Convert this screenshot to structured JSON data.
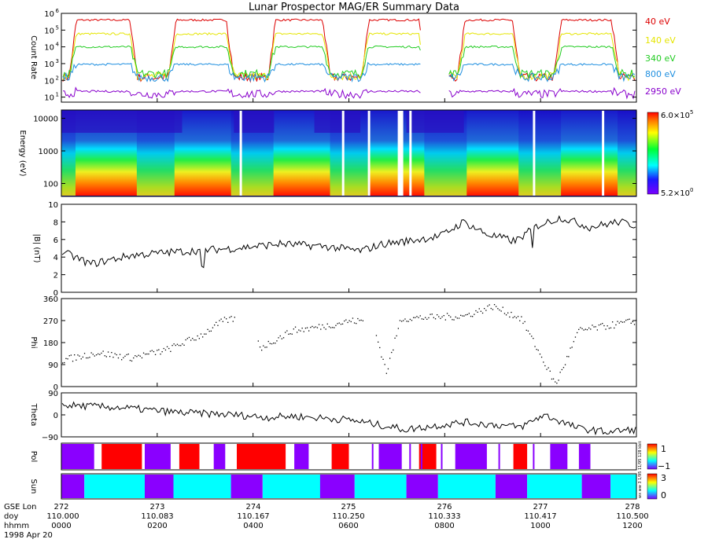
{
  "title": "Lunar Prospector MAG/ER Summary Data",
  "colors": {
    "e40": "#dd0000",
    "e140": "#e5e500",
    "e340": "#22cc22",
    "e800": "#1f8fe0",
    "e2950": "#8800cc",
    "pol_red": "#ff0000",
    "pol_purple": "#8a00ff",
    "sun_cyan": "#00ffff",
    "sun_purple": "#8a00ff",
    "trace": "#000000"
  },
  "chart_data": [
    {
      "id": "count-rate",
      "type": "line",
      "ylabel": "Count Rate",
      "yscale": "log",
      "ylim": [
        5,
        1000000
      ],
      "yticks": [
        {
          "label": "10",
          "exp": "1",
          "value": 10
        },
        {
          "label": "10",
          "exp": "2",
          "value": 100
        },
        {
          "label": "10",
          "exp": "3",
          "value": 1000
        },
        {
          "label": "10",
          "exp": "4",
          "value": 10000
        },
        {
          "label": "10",
          "exp": "5",
          "value": 100000
        },
        {
          "label": "10",
          "exp": "6",
          "value": 1000000
        }
      ],
      "series": [
        {
          "name": "40 eV",
          "high": 400000,
          "low": 150
        },
        {
          "name": "140 eV",
          "high": 60000,
          "low": 180
        },
        {
          "name": "340 eV",
          "high": 10000,
          "low": 250
        },
        {
          "name": "800 eV",
          "high": 900,
          "low": 150
        },
        {
          "name": "2950 eV",
          "high": 22,
          "low": 15
        }
      ]
    },
    {
      "id": "spectrogram",
      "type": "heatmap",
      "ylabel": "Energy (eV)",
      "ylim": [
        40,
        18000
      ],
      "yticks": [
        {
          "label": "10000",
          "value": 10000
        },
        {
          "label": "1000",
          "value": 1000
        },
        {
          "label": "100",
          "value": 100
        }
      ],
      "colorbar": {
        "max_label": "6.0×10",
        "max_exp": "5",
        "min_label": "5.2×10",
        "min_exp": "0"
      }
    },
    {
      "id": "field-magnitude",
      "type": "line",
      "ylabel": "|B| (nT)",
      "ylim": [
        0,
        10
      ],
      "yticks": [
        {
          "label": "0",
          "value": 0
        },
        {
          "label": "2",
          "value": 2
        },
        {
          "label": "4",
          "value": 4
        },
        {
          "label": "6",
          "value": 6
        },
        {
          "label": "8",
          "value": 8
        },
        {
          "label": "10",
          "value": 10
        }
      ],
      "anchors": [
        [
          0,
          4.6
        ],
        [
          0.05,
          3.2
        ],
        [
          0.12,
          4.2
        ],
        [
          0.2,
          4.6
        ],
        [
          0.3,
          5.0
        ],
        [
          0.38,
          5.5
        ],
        [
          0.46,
          5.2
        ],
        [
          0.52,
          4.7
        ],
        [
          0.56,
          5.5
        ],
        [
          0.6,
          5.8
        ],
        [
          0.66,
          6.4
        ],
        [
          0.7,
          8.0
        ],
        [
          0.74,
          6.6
        ],
        [
          0.79,
          5.8
        ],
        [
          0.83,
          7.6
        ],
        [
          0.87,
          8.5
        ],
        [
          0.92,
          7.4
        ],
        [
          0.97,
          8.0
        ],
        [
          1.0,
          7.6
        ]
      ]
    },
    {
      "id": "phi",
      "type": "scatter",
      "ylabel": "Phi",
      "ylim": [
        0,
        360
      ],
      "yticks": [
        {
          "label": "0",
          "value": 0
        },
        {
          "label": "90",
          "value": 90
        },
        {
          "label": "180",
          "value": 180
        },
        {
          "label": "270",
          "value": 270
        },
        {
          "label": "360",
          "value": 360
        }
      ],
      "anchors": [
        [
          0,
          110
        ],
        [
          0.06,
          140
        ],
        [
          0.12,
          120
        ],
        [
          0.18,
          150
        ],
        [
          0.24,
          210
        ],
        [
          0.28,
          270
        ],
        [
          0.32,
          290
        ],
        [
          0.345,
          160
        ],
        [
          0.4,
          230
        ],
        [
          0.46,
          250
        ],
        [
          0.5,
          270
        ],
        [
          0.54,
          270
        ],
        [
          0.565,
          60
        ],
        [
          0.59,
          280
        ],
        [
          0.7,
          290
        ],
        [
          0.75,
          330
        ],
        [
          0.8,
          280
        ],
        [
          0.86,
          10
        ],
        [
          0.9,
          230
        ],
        [
          0.95,
          250
        ],
        [
          1.0,
          270
        ]
      ]
    },
    {
      "id": "theta",
      "type": "line",
      "ylabel": "Theta",
      "ylim": [
        -90,
        90
      ],
      "yticks": [
        {
          "label": "−90",
          "value": -90
        },
        {
          "label": "0",
          "value": 0
        },
        {
          "label": "90",
          "value": 90
        }
      ],
      "anchors": [
        [
          0,
          40
        ],
        [
          0.1,
          30
        ],
        [
          0.2,
          10
        ],
        [
          0.3,
          0
        ],
        [
          0.36,
          -10
        ],
        [
          0.4,
          -5
        ],
        [
          0.5,
          -20
        ],
        [
          0.55,
          -40
        ],
        [
          0.6,
          -60
        ],
        [
          0.7,
          -30
        ],
        [
          0.8,
          -50
        ],
        [
          0.84,
          0
        ],
        [
          0.9,
          -55
        ],
        [
          0.95,
          -70
        ],
        [
          1.0,
          -60
        ]
      ]
    },
    {
      "id": "pol",
      "type": "heatmap",
      "ylabel": "Pol",
      "colorbar": {
        "ticks": [
          "1",
          "−1"
        ]
      },
      "segments": [
        [
          "purple",
          0.0,
          0.057
        ],
        [
          "red",
          0.07,
          0.14
        ],
        [
          "purple",
          0.145,
          0.19
        ],
        [
          "red",
          0.205,
          0.24
        ],
        [
          "purple",
          0.265,
          0.285
        ],
        [
          "red",
          0.305,
          0.39
        ],
        [
          "purple",
          0.405,
          0.43
        ],
        [
          "red",
          0.47,
          0.5
        ],
        [
          "purple",
          0.552,
          0.592
        ],
        [
          "red",
          0.622,
          0.652
        ],
        [
          "purple",
          0.685,
          0.74
        ],
        [
          "red",
          0.786,
          0.81
        ],
        [
          "purple",
          0.85,
          0.88
        ],
        [
          "purple",
          0.9,
          0.92
        ]
      ]
    },
    {
      "id": "sun",
      "type": "heatmap",
      "ylabel": "Sun",
      "colorbar": {
        "ticks": [
          "3",
          "0"
        ]
      },
      "segments": [
        [
          "purple",
          0.0,
          0.04
        ],
        [
          "cyan",
          0.04,
          0.145
        ],
        [
          "purple",
          0.145,
          0.195
        ],
        [
          "cyan",
          0.195,
          0.295
        ],
        [
          "purple",
          0.295,
          0.35
        ],
        [
          "cyan",
          0.35,
          0.45
        ],
        [
          "purple",
          0.45,
          0.51
        ],
        [
          "cyan",
          0.51,
          0.6
        ],
        [
          "purple",
          0.6,
          0.655
        ],
        [
          "cyan",
          0.655,
          0.755
        ],
        [
          "purple",
          0.755,
          0.81
        ],
        [
          "cyan",
          0.81,
          0.905
        ],
        [
          "purple",
          0.905,
          0.955
        ],
        [
          "cyan",
          0.955,
          1.0
        ]
      ]
    }
  ],
  "energy_labels": [
    {
      "text": "40 eV",
      "color": "#dd0000"
    },
    {
      "text": "140 eV",
      "color": "#e5e500"
    },
    {
      "text": "340 eV",
      "color": "#22cc22"
    },
    {
      "text": "800 eV",
      "color": "#1f8fe0"
    },
    {
      "text": "2950 eV",
      "color": "#8800cc"
    }
  ],
  "time_axis": {
    "row_labels": [
      "GSE Lon",
      "doy",
      "hhmm"
    ],
    "date": "1998 Apr 20",
    "ticks": [
      {
        "lon": "272",
        "doy": "110.000",
        "hhmm": "0000"
      },
      {
        "lon": "273",
        "doy": "110.083",
        "hhmm": "0200"
      },
      {
        "lon": "274",
        "doy": "110.167",
        "hhmm": "0400"
      },
      {
        "lon": "275",
        "doy": "110.250",
        "hhmm": "0600"
      },
      {
        "lon": "276",
        "doy": "110.333",
        "hhmm": "0800"
      },
      {
        "lon": "277",
        "doy": "110.417",
        "hhmm": "1000"
      },
      {
        "lon": "278",
        "doy": "110.500",
        "hhmm": "1200"
      }
    ]
  },
  "side_labels": {
    "pol": "11/95 128 kbit",
    "sun": "wx ww 3 1/95"
  }
}
